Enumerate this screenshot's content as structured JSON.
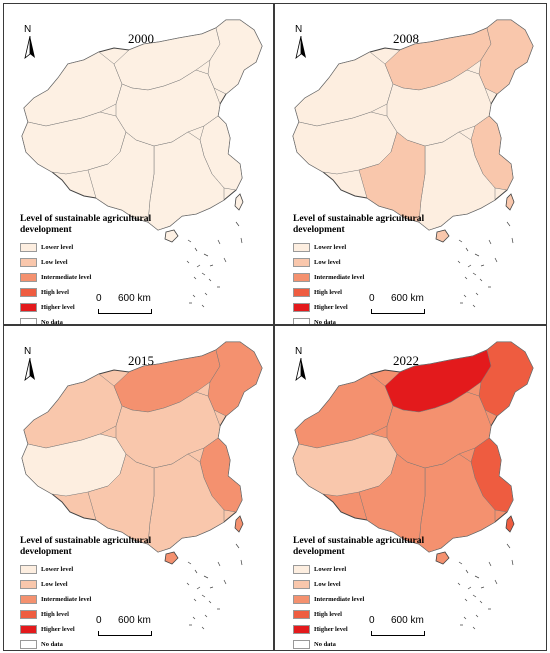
{
  "north_label": "N",
  "legend_title": "Level of sustainable agricultural development",
  "legend": [
    {
      "label": "Lower level",
      "color": "#fdeee0"
    },
    {
      "label": "Low level",
      "color": "#f9c7ac"
    },
    {
      "label": "Intermediate level",
      "color": "#f4916f"
    },
    {
      "label": "High level",
      "color": "#ee5c40"
    },
    {
      "label": "Higher level",
      "color": "#e31a1c"
    },
    {
      "label": "No data",
      "color": "#ffffff"
    }
  ],
  "scale": {
    "zero": "0",
    "distance": "600 km"
  },
  "panels": [
    {
      "year": "2000",
      "fill": {
        "main": "#fdf0e3",
        "northwest": "#fdf0e3",
        "west": "#fdf0e3",
        "north": "#fdf0e3",
        "northeast": "#fdf0e3",
        "central": "#fdf0e3",
        "east": "#fdf0e3",
        "south": "#fdf0e3",
        "southwest": "#fdf0e3",
        "island": "#fdf0e3"
      }
    },
    {
      "year": "2008",
      "fill": {
        "main": "#fdeee0",
        "northwest": "#fdeee0",
        "west": "#fdeee0",
        "north": "#f9c7ac",
        "northeast": "#f9c7ac",
        "central": "#fdeee0",
        "east": "#f9c7ac",
        "south": "#fdeee0",
        "southwest": "#f9c7ac",
        "island": "#f9c7ac"
      }
    },
    {
      "year": "2015",
      "fill": {
        "main": "#f9c7ac",
        "northwest": "#f9c7ac",
        "west": "#fdeee0",
        "north": "#f4916f",
        "northeast": "#f4916f",
        "central": "#f9c7ac",
        "east": "#f4916f",
        "south": "#f9c7ac",
        "southwest": "#f9c7ac",
        "island": "#f4916f"
      }
    },
    {
      "year": "2022",
      "fill": {
        "main": "#f4916f",
        "northwest": "#f4916f",
        "west": "#f9c7ac",
        "north": "#e31a1c",
        "northeast": "#ee5c40",
        "central": "#f4916f",
        "east": "#ee5c40",
        "south": "#f4916f",
        "southwest": "#f4916f",
        "island": "#f4916f"
      }
    }
  ]
}
